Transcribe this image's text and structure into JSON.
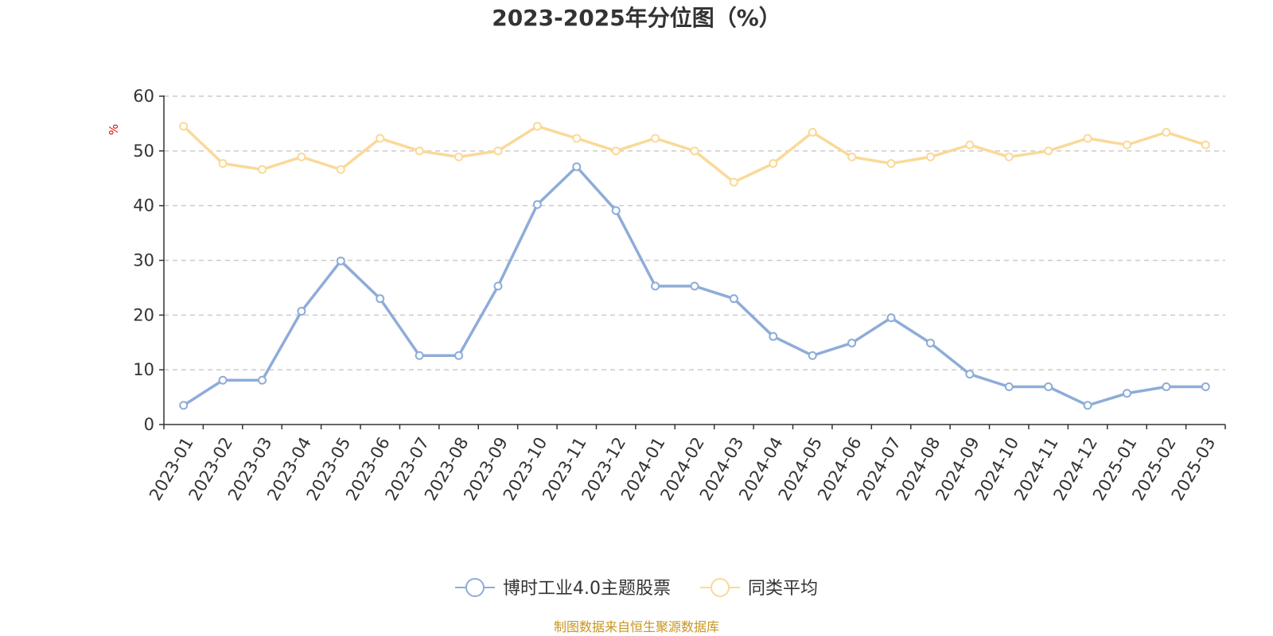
{
  "chart_data": {
    "type": "line",
    "title": "2023-2025年分位图（%）",
    "ylabel": "%",
    "ylim": [
      0,
      60
    ],
    "yticks": [
      0,
      10,
      20,
      30,
      40,
      50,
      60
    ],
    "grid": true,
    "legend_position": "bottom-center",
    "categories": [
      "2023-01",
      "2023-02",
      "2023-03",
      "2023-04",
      "2023-05",
      "2023-06",
      "2023-07",
      "2023-08",
      "2023-09",
      "2023-10",
      "2023-11",
      "2023-12",
      "2024-01",
      "2024-02",
      "2024-03",
      "2024-04",
      "2024-05",
      "2024-06",
      "2024-07",
      "2024-08",
      "2024-09",
      "2024-10",
      "2024-11",
      "2024-12",
      "2025-01",
      "2025-02",
      "2025-03"
    ],
    "series": [
      {
        "name": "博时工业4.0主题股票",
        "color": "#8eacd8",
        "values": [
          3.5,
          8.1,
          8.1,
          20.7,
          29.9,
          23.0,
          12.6,
          12.6,
          25.3,
          40.2,
          47.1,
          39.1,
          25.3,
          25.3,
          23.0,
          16.1,
          12.6,
          14.9,
          19.5,
          14.9,
          9.2,
          6.9,
          6.9,
          3.5,
          5.7,
          6.9,
          6.9
        ]
      },
      {
        "name": "同类平均",
        "color": "#fad998",
        "values": [
          54.5,
          47.7,
          46.6,
          48.9,
          46.6,
          52.3,
          50.0,
          48.9,
          50.0,
          54.5,
          52.3,
          50.0,
          52.3,
          50.0,
          44.3,
          47.7,
          53.4,
          48.9,
          47.7,
          48.9,
          51.1,
          48.9,
          50.0,
          52.3,
          51.1,
          53.4,
          51.1
        ]
      }
    ]
  },
  "source": "制图数据来自恒生聚源数据库"
}
